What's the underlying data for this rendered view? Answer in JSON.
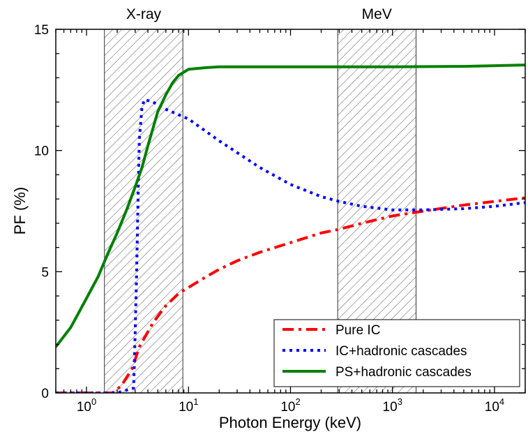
{
  "chart_data": {
    "type": "line",
    "xlabel": "Photon Energy (keV)",
    "ylabel": "PF (%)",
    "xscale": "log",
    "xlim": [
      0.5,
      20000
    ],
    "ylim": [
      0,
      15
    ],
    "y_ticks": [
      "0",
      "5",
      "10",
      "15"
    ],
    "x_ticks": [
      {
        "base": "10",
        "exp": "0",
        "value": 1
      },
      {
        "base": "10",
        "exp": "1",
        "value": 10
      },
      {
        "base": "10",
        "exp": "2",
        "value": 100
      },
      {
        "base": "10",
        "exp": "3",
        "value": 1000
      },
      {
        "base": "10",
        "exp": "4",
        "value": 10000
      }
    ],
    "bands": [
      {
        "label": "X-ray",
        "x_range": [
          1.5,
          8.8
        ]
      },
      {
        "label": "MeV",
        "x_range": [
          290,
          1700
        ]
      }
    ],
    "legend_position": "bottom-right",
    "series": [
      {
        "name": "Pure IC",
        "color": "#ff0000",
        "style": "dash-dot",
        "x": [
          0.5,
          1.0,
          1.8,
          2.2,
          2.8,
          3.3,
          4.5,
          6.0,
          8.0,
          10,
          15,
          20,
          30,
          50,
          100,
          200,
          300,
          500,
          1000,
          2000,
          5000,
          10000,
          20000
        ],
        "y": [
          0,
          0,
          0,
          0.3,
          1.0,
          1.9,
          2.9,
          3.6,
          4.1,
          4.35,
          4.8,
          5.1,
          5.45,
          5.8,
          6.2,
          6.6,
          6.75,
          7.0,
          7.3,
          7.5,
          7.75,
          7.9,
          8.05
        ]
      },
      {
        "name": "IC+hadronic cascades",
        "color": "#0000ff",
        "style": "dot",
        "x": [
          0.5,
          2.0,
          2.9,
          3.0,
          3.1,
          3.2,
          3.3,
          3.5,
          3.7,
          4.5,
          6.0,
          10,
          20,
          50,
          100,
          200,
          300,
          500,
          1000,
          2000,
          5000,
          10000,
          20000
        ],
        "y": [
          0,
          0,
          0.2,
          2.5,
          5.0,
          8.0,
          10.5,
          11.8,
          12.1,
          12.0,
          11.7,
          11.3,
          10.4,
          9.3,
          8.6,
          8.1,
          7.9,
          7.7,
          7.55,
          7.55,
          7.6,
          7.7,
          7.85
        ]
      },
      {
        "name": "PS+hadronic cascades",
        "color": "#008000",
        "style": "solid",
        "x": [
          0.5,
          0.7,
          1.0,
          1.3,
          1.6,
          2.0,
          2.5,
          3.0,
          3.5,
          4.0,
          5.0,
          6.0,
          7.0,
          8.0,
          10,
          15,
          20,
          50,
          100,
          1000,
          5000,
          10000,
          20000
        ],
        "y": [
          1.9,
          2.7,
          3.9,
          4.8,
          5.7,
          6.6,
          7.6,
          8.5,
          9.3,
          10.2,
          11.6,
          12.3,
          12.8,
          13.1,
          13.35,
          13.42,
          13.45,
          13.45,
          13.45,
          13.45,
          13.47,
          13.5,
          13.53
        ]
      }
    ]
  }
}
